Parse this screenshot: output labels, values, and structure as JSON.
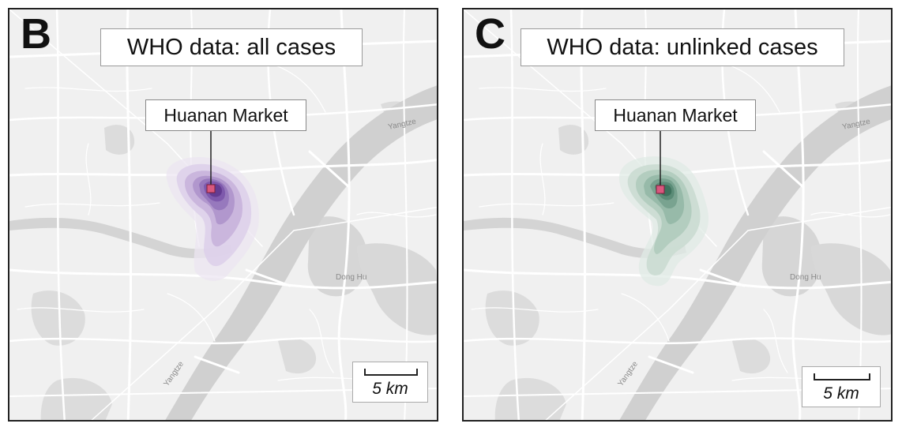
{
  "panels": [
    {
      "letter": "B",
      "title": "WHO data: all cases",
      "marker_label": "Huanan Market",
      "scale_label": "5 km",
      "palette": [
        "#ece6f2",
        "#ddd0ea",
        "#c8b3dc",
        "#ae93cb",
        "#9575bb",
        "#7b55aa",
        "#60398f"
      ],
      "marker_color": "#d9587e",
      "map_labels": {
        "river": "Yangtze",
        "lake": "Dong Hu"
      }
    },
    {
      "letter": "C",
      "title": "WHO data: unlinked cases",
      "marker_label": "Huanan Market",
      "scale_label": "5 km",
      "palette": [
        "#e0ebe5",
        "#cadcd2",
        "#b0cbbd",
        "#94b8a6",
        "#76a18d",
        "#588a74",
        "#3b6f5a"
      ],
      "marker_color": "#d9587e",
      "map_labels": {
        "river": "Yangtze",
        "lake": "Dong Hu"
      }
    }
  ]
}
